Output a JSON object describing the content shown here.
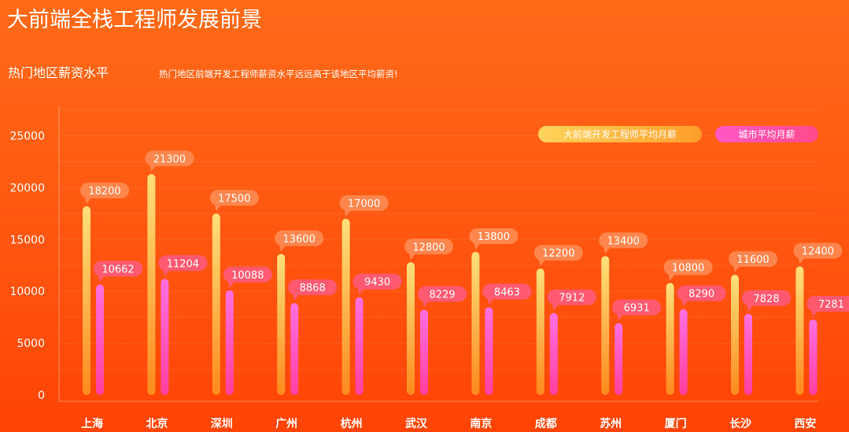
{
  "header": {
    "title": "大前端全栈工程师发展前景",
    "subtitle": "热门地区薪资水平",
    "note": "热门地区前端开发工程师薪资水平远远高于该地区平均薪资!"
  },
  "colors": {
    "bar_dev_top": "#ffe07a",
    "bar_dev_bottom": "#ff8a1e",
    "bar_city_top": "#ff6fe0",
    "bar_city_bottom": "#ff3fa0",
    "label_dev": "#ff8a52",
    "label_city": "#ff5a7a"
  },
  "chart_data": {
    "type": "bar",
    "categories": [
      "上海",
      "北京",
      "深圳",
      "广州",
      "杭州",
      "武汉",
      "南京",
      "成都",
      "苏州",
      "厦门",
      "长沙",
      "西安"
    ],
    "series": [
      {
        "name": "大前端开发工程师平均月薪",
        "values": [
          18200,
          21300,
          17500,
          13600,
          17000,
          12800,
          13800,
          12200,
          13400,
          10800,
          11600,
          12400
        ]
      },
      {
        "name": "城市平均月薪",
        "values": [
          10662,
          11204,
          10088,
          8868,
          9430,
          8229,
          8463,
          7912,
          6931,
          8290,
          7828,
          7281
        ]
      }
    ],
    "yticks": [
      0,
      5000,
      10000,
      15000,
      20000,
      25000
    ],
    "ylim": [
      0,
      27500
    ],
    "legend": "top-right",
    "data_labels": true
  }
}
